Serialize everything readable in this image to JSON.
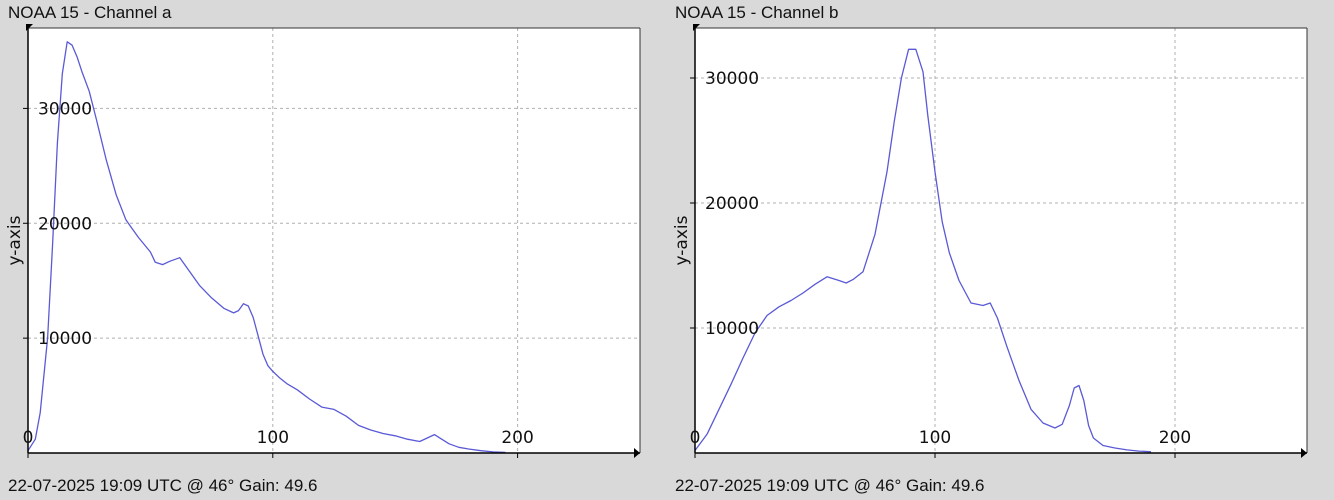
{
  "chart_data": [
    {
      "type": "line",
      "title": "NOAA 15 - Channel a",
      "subtitle": "22-07-2025 19:09 UTC @ 46° Gain: 49.6",
      "xlabel": "",
      "ylabel": "y-axis",
      "xlim": [
        0,
        250
      ],
      "ylim": [
        0,
        37000
      ],
      "xticks": [
        0,
        100,
        200
      ],
      "yticks": [
        10000,
        20000,
        30000
      ],
      "grid": true,
      "line_color": "#5a5ad6",
      "series": [
        {
          "x": [
            0,
            3,
            5,
            8,
            10,
            12,
            14,
            16,
            18,
            20,
            22,
            25,
            28,
            32,
            36,
            40,
            45,
            50,
            52,
            55,
            58,
            62,
            66,
            70,
            75,
            80,
            84,
            86,
            88,
            90,
            92,
            94,
            96,
            98,
            100,
            103,
            106,
            110,
            115,
            120,
            125,
            130,
            135,
            140,
            145,
            150,
            155,
            160,
            163,
            166,
            169,
            172,
            176,
            180,
            185,
            190,
            195
          ],
          "y": [
            200,
            1200,
            3500,
            10000,
            18000,
            27000,
            33000,
            35800,
            35500,
            34500,
            33200,
            31500,
            29000,
            25500,
            22500,
            20300,
            18800,
            17500,
            16600,
            16400,
            16700,
            17000,
            15800,
            14600,
            13500,
            12600,
            12200,
            12400,
            13000,
            12800,
            11800,
            10200,
            8600,
            7600,
            7100,
            6500,
            6000,
            5500,
            4700,
            4000,
            3800,
            3200,
            2400,
            2000,
            1700,
            1500,
            1200,
            1000,
            1300,
            1600,
            1200,
            800,
            500,
            350,
            200,
            100,
            50
          ]
        }
      ]
    },
    {
      "type": "line",
      "title": "NOAA 15 - Channel b",
      "subtitle": "22-07-2025 19:09 UTC @ 46° Gain: 49.6",
      "xlabel": "",
      "ylabel": "y-axis",
      "xlim": [
        0,
        255
      ],
      "ylim": [
        0,
        34000
      ],
      "xticks": [
        0,
        100,
        200
      ],
      "yticks": [
        10000,
        20000,
        30000
      ],
      "grid": true,
      "line_color": "#5a5ad6",
      "series": [
        {
          "x": [
            0,
            5,
            10,
            15,
            20,
            25,
            30,
            35,
            40,
            45,
            50,
            55,
            60,
            63,
            66,
            70,
            75,
            80,
            83,
            86,
            89,
            92,
            95,
            97,
            100,
            103,
            106,
            110,
            115,
            120,
            123,
            126,
            130,
            135,
            140,
            145,
            150,
            153,
            156,
            158,
            160,
            162,
            164,
            166,
            170,
            175,
            180,
            185,
            190
          ],
          "y": [
            200,
            1500,
            3500,
            5500,
            7600,
            9600,
            11000,
            11700,
            12200,
            12800,
            13500,
            14100,
            13800,
            13600,
            13900,
            14500,
            17500,
            22500,
            26500,
            30000,
            32300,
            32300,
            30500,
            27000,
            22500,
            18500,
            16000,
            13800,
            12000,
            11800,
            12000,
            10800,
            8500,
            5800,
            3500,
            2400,
            2000,
            2300,
            3800,
            5200,
            5400,
            4200,
            2200,
            1200,
            600,
            400,
            250,
            150,
            100
          ]
        }
      ]
    }
  ]
}
